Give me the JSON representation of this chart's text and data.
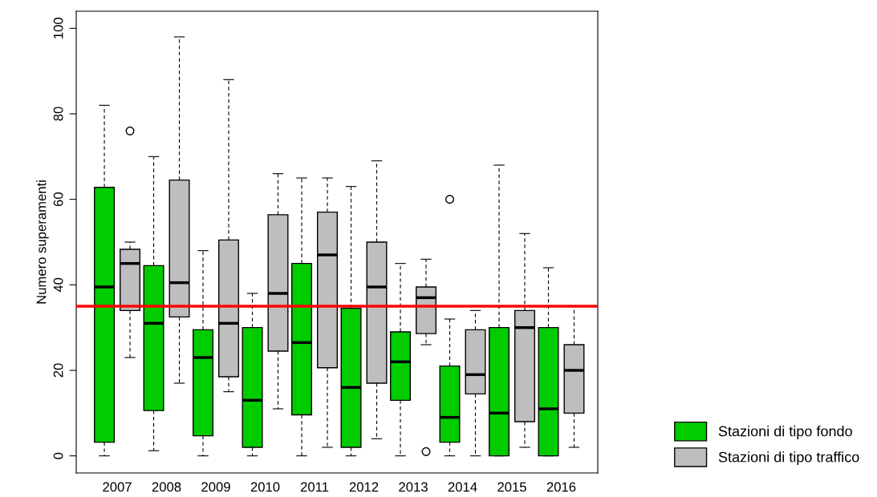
{
  "chart_data": {
    "type": "box",
    "ylabel": "Numero superamenti",
    "categories": [
      "2007",
      "2008",
      "2009",
      "2010",
      "2011",
      "2012",
      "2013",
      "2014",
      "2015",
      "2016"
    ],
    "ylim": [
      -4,
      104
    ],
    "yticks": [
      0,
      20,
      40,
      60,
      80,
      100
    ],
    "grid": false,
    "legend": "bottom right",
    "ref_lines": [
      {
        "axis": "y",
        "value": 35,
        "color": "#ff0000"
      }
    ],
    "series": [
      {
        "name": "Stazioni di tipo fondo",
        "color": "#00cc00",
        "boxes": [
          {
            "low": 0,
            "q1": 3.2,
            "median": 39.5,
            "q3": 62.8,
            "high": 82
          },
          {
            "low": 1.2,
            "q1": 10.6,
            "median": 31,
            "q3": 44.5,
            "high": 70
          },
          {
            "low": 0,
            "q1": 4.7,
            "median": 23,
            "q3": 29.5,
            "high": 48
          },
          {
            "low": 0,
            "q1": 2,
            "median": 13,
            "q3": 30,
            "high": 38
          },
          {
            "low": 0,
            "q1": 9.6,
            "median": 26.5,
            "q3": 45,
            "high": 65
          },
          {
            "low": 0,
            "q1": 2,
            "median": 16,
            "q3": 34.5,
            "high": 63
          },
          {
            "low": 0,
            "q1": 13,
            "median": 22,
            "q3": 29,
            "high": 45
          },
          {
            "low": 0,
            "q1": 3.2,
            "median": 9,
            "q3": 21,
            "high": 32,
            "outliers": [
              60
            ]
          },
          {
            "low": 0,
            "q1": 0,
            "median": 10,
            "q3": 30,
            "high": 68
          },
          {
            "low": 0,
            "q1": 0,
            "median": 11,
            "q3": 30,
            "high": 44
          }
        ]
      },
      {
        "name": "Stazioni di tipo traffico",
        "color": "#bebebe",
        "boxes": [
          {
            "low": 23,
            "q1": 34,
            "median": 45,
            "q3": 48.3,
            "high": 50,
            "outliers": [
              76
            ]
          },
          {
            "low": 17,
            "q1": 32.5,
            "median": 40.5,
            "q3": 64.5,
            "high": 98
          },
          {
            "low": 15,
            "q1": 18.5,
            "median": 31,
            "q3": 50.5,
            "high": 88
          },
          {
            "low": 11,
            "q1": 24.5,
            "median": 38,
            "q3": 56.4,
            "high": 66
          },
          {
            "low": 2,
            "q1": 20.6,
            "median": 47,
            "q3": 57,
            "high": 65
          },
          {
            "low": 4,
            "q1": 17,
            "median": 39.5,
            "q3": 50,
            "high": 69
          },
          {
            "low": 26,
            "q1": 28.6,
            "median": 37,
            "q3": 39.5,
            "high": 46,
            "outliers": [
              1
            ]
          },
          {
            "low": 0,
            "q1": 14.5,
            "median": 19,
            "q3": 29.5,
            "high": 34
          },
          {
            "low": 2,
            "q1": 8,
            "median": 30,
            "q3": 34,
            "high": 52
          },
          {
            "low": 2,
            "q1": 10,
            "median": 20,
            "q3": 26,
            "high": 35
          }
        ]
      }
    ]
  }
}
